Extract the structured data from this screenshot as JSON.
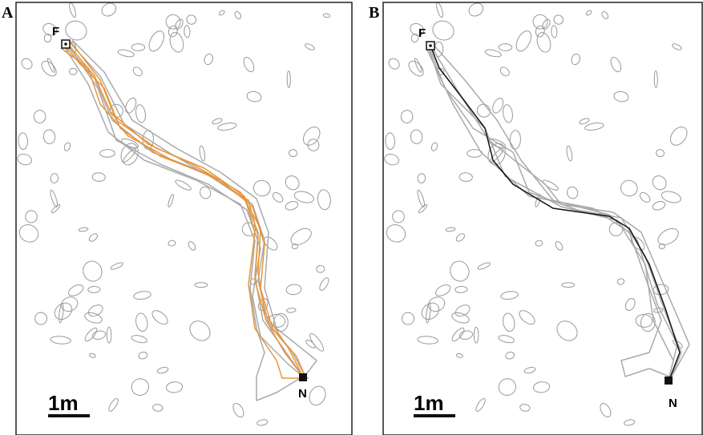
{
  "panels": [
    {
      "label": "A",
      "start_label": "F",
      "end_label": "N",
      "scale_label": "1m"
    },
    {
      "label": "B",
      "start_label": "F",
      "end_label": "N",
      "scale_label": "1m"
    }
  ]
}
